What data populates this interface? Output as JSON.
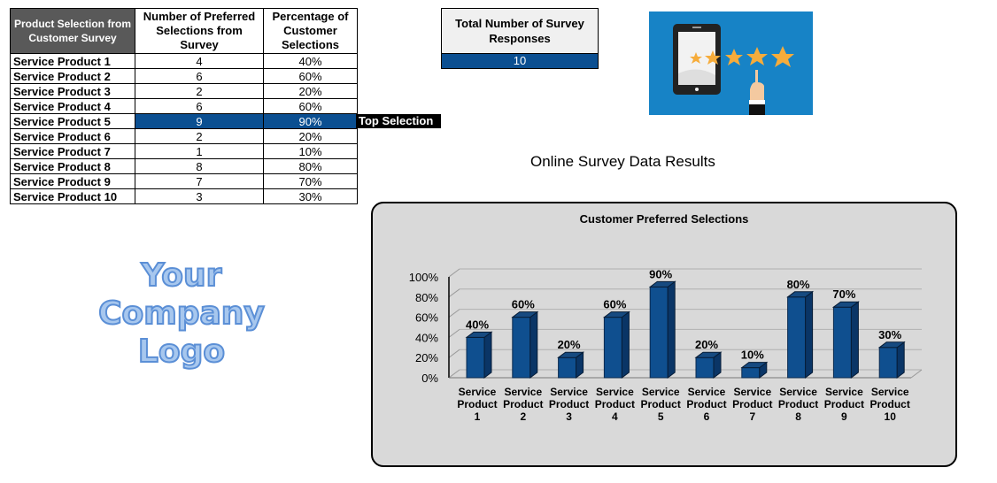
{
  "table": {
    "headers": [
      "Product Selection from Customer Survey",
      "Number of Preferred Selections from Survey",
      "Percentage of Customer Selections"
    ],
    "rows": [
      {
        "name": "Service Product 1",
        "count": "4",
        "pct": "40%"
      },
      {
        "name": "Service Product 2",
        "count": "6",
        "pct": "60%"
      },
      {
        "name": "Service Product 3",
        "count": "2",
        "pct": "20%"
      },
      {
        "name": "Service Product 4",
        "count": "6",
        "pct": "60%"
      },
      {
        "name": "Service Product 5",
        "count": "9",
        "pct": "90%"
      },
      {
        "name": "Service Product 6",
        "count": "2",
        "pct": "20%"
      },
      {
        "name": "Service Product 7",
        "count": "1",
        "pct": "10%"
      },
      {
        "name": "Service Product 8",
        "count": "8",
        "pct": "80%"
      },
      {
        "name": "Service Product 9",
        "count": "7",
        "pct": "70%"
      },
      {
        "name": "Service Product 10",
        "count": "3",
        "pct": "30%"
      }
    ],
    "top_selection_label": "Top Selection"
  },
  "total": {
    "label": "Total Number of Survey Responses",
    "value": "10"
  },
  "page_title": "Online Survey Data Results",
  "logo": {
    "line1": "Your",
    "line2": "Company",
    "line3": "Logo"
  },
  "colors": {
    "accent_blue": "#0b4f91",
    "header_gray": "#595959",
    "chart_bg": "#d9d9d9",
    "image_bg": "#1783c6",
    "star": "#f6ac3b"
  },
  "chart_data": {
    "type": "bar",
    "title": "Customer Preferred Selections",
    "categories": [
      "Service Product 1",
      "Service Product 2",
      "Service Product 3",
      "Service Product 4",
      "Service Product 5",
      "Service Product 6",
      "Service Product 7",
      "Service Product 8",
      "Service Product 9",
      "Service Product 10"
    ],
    "values": [
      40,
      60,
      20,
      60,
      90,
      20,
      10,
      80,
      70,
      30
    ],
    "value_labels": [
      "40%",
      "60%",
      "20%",
      "60%",
      "90%",
      "20%",
      "10%",
      "80%",
      "70%",
      "30%"
    ],
    "y_ticks": [
      "0%",
      "20%",
      "40%",
      "60%",
      "80%",
      "100%"
    ],
    "ylim": [
      0,
      100
    ],
    "xlabel": "",
    "ylabel": "",
    "grid": true,
    "style": "3d-column",
    "legend": "none"
  }
}
